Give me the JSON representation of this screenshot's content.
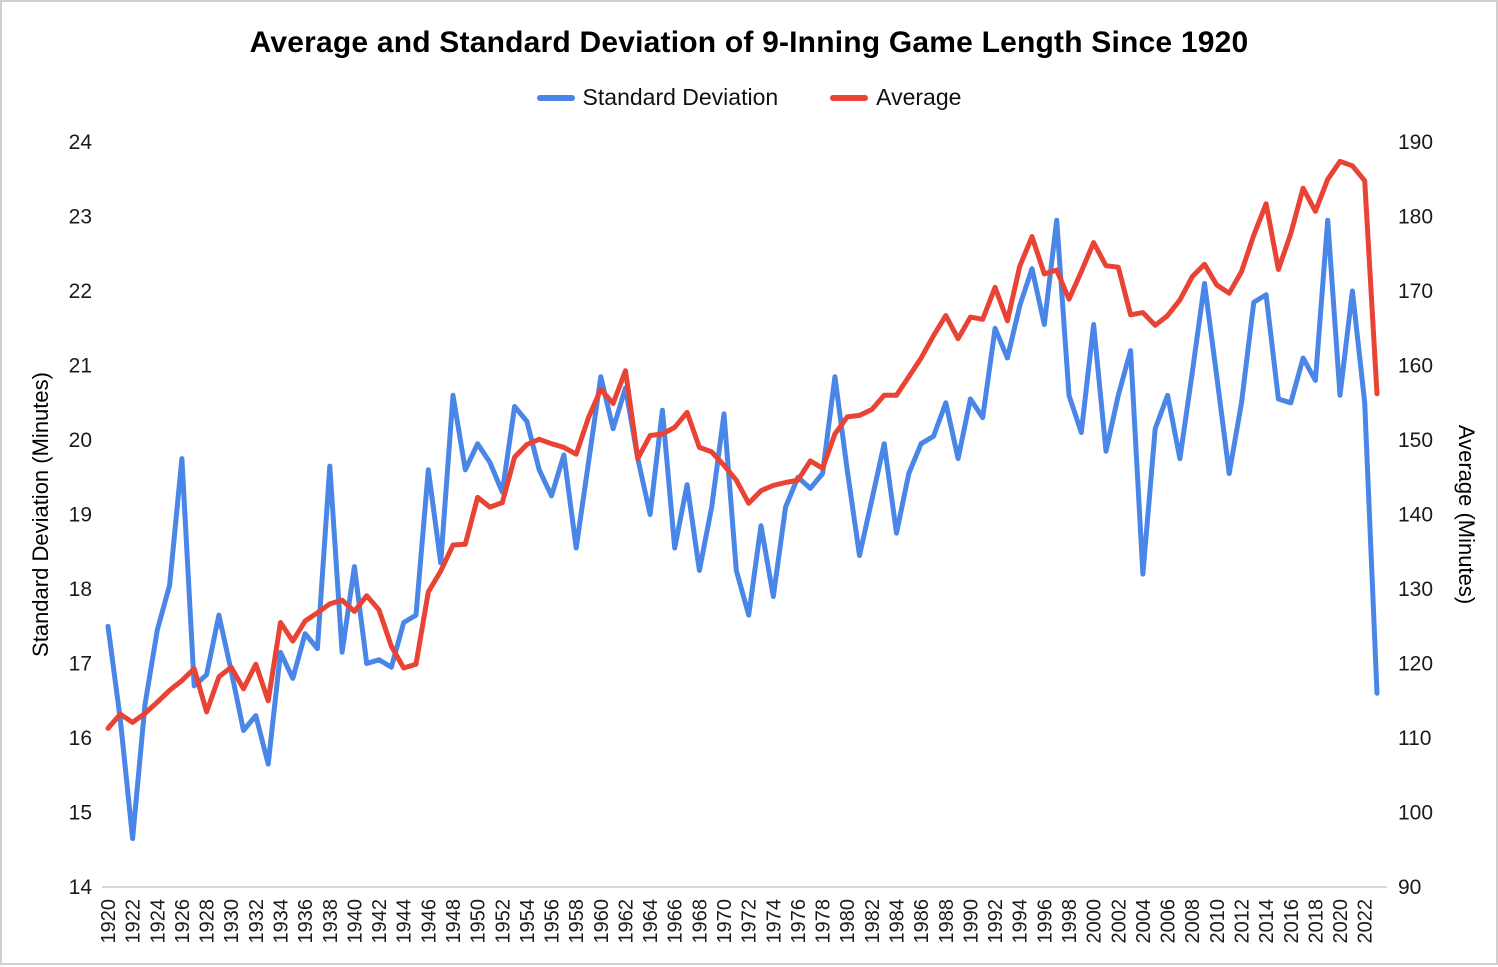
{
  "title": "Average and Standard Deviation of 9-Inning Game Length Since 1920",
  "legend": {
    "items": [
      {
        "label": "Standard Deviation",
        "color": "#4a86e8"
      },
      {
        "label": "Average",
        "color": "#e84335"
      }
    ]
  },
  "colors": {
    "sd_line": "#4a86e8",
    "avg_line": "#e84335",
    "axis_line": "#d9d9d9",
    "tick_text": "#1a1a1a"
  },
  "chart_data": {
    "type": "line",
    "title": "Average and Standard Deviation of 9-Inning Game Length Since 1920",
    "grid": false,
    "legend_position": "top",
    "x": [
      1920,
      1921,
      1922,
      1923,
      1924,
      1925,
      1926,
      1927,
      1928,
      1929,
      1930,
      1931,
      1932,
      1933,
      1934,
      1935,
      1936,
      1937,
      1938,
      1939,
      1940,
      1941,
      1942,
      1943,
      1944,
      1945,
      1946,
      1947,
      1948,
      1949,
      1950,
      1951,
      1952,
      1953,
      1954,
      1955,
      1956,
      1957,
      1958,
      1959,
      1960,
      1961,
      1962,
      1963,
      1964,
      1965,
      1966,
      1967,
      1968,
      1969,
      1970,
      1971,
      1972,
      1973,
      1974,
      1975,
      1976,
      1977,
      1978,
      1979,
      1980,
      1981,
      1982,
      1983,
      1984,
      1985,
      1986,
      1987,
      1988,
      1989,
      1990,
      1991,
      1992,
      1993,
      1994,
      1995,
      1996,
      1997,
      1998,
      1999,
      2000,
      2001,
      2002,
      2003,
      2004,
      2005,
      2006,
      2007,
      2008,
      2009,
      2010,
      2011,
      2012,
      2013,
      2014,
      2015,
      2016,
      2017,
      2018,
      2019,
      2020,
      2021,
      2022,
      2023
    ],
    "series": [
      {
        "name": "Standard Deviation",
        "axis": "left",
        "color": "#4a86e8",
        "values": [
          17.5,
          16.25,
          14.65,
          16.45,
          17.45,
          18.05,
          19.75,
          16.7,
          16.85,
          17.65,
          16.9,
          16.1,
          16.3,
          15.65,
          17.15,
          16.8,
          17.4,
          17.2,
          19.65,
          17.15,
          18.3,
          17.0,
          17.05,
          16.95,
          17.55,
          17.65,
          19.6,
          18.35,
          20.6,
          19.6,
          19.95,
          19.7,
          19.3,
          20.45,
          20.25,
          19.6,
          19.25,
          19.8,
          18.55,
          19.7,
          20.85,
          20.15,
          20.7,
          19.75,
          19.0,
          20.4,
          18.55,
          19.4,
          18.25,
          19.1,
          20.35,
          18.25,
          17.65,
          18.85,
          17.9,
          19.1,
          19.5,
          19.35,
          19.55,
          20.85,
          19.6,
          18.45,
          19.2,
          19.95,
          18.75,
          19.55,
          19.95,
          20.05,
          20.5,
          19.75,
          20.55,
          20.3,
          21.5,
          21.1,
          21.8,
          22.3,
          21.55,
          22.95,
          20.6,
          20.1,
          21.55,
          19.85,
          20.6,
          21.2,
          18.2,
          20.15,
          20.6,
          19.75,
          20.9,
          22.1,
          20.85,
          19.55,
          20.5,
          21.85,
          21.95,
          20.55,
          20.5,
          21.1,
          20.8,
          22.95,
          20.6,
          22.0,
          20.5,
          16.6
        ]
      },
      {
        "name": "Average",
        "axis": "right",
        "color": "#e84335",
        "values": [
          111.3,
          113.2,
          112.1,
          113.3,
          114.8,
          116.4,
          117.7,
          119.3,
          113.5,
          118.2,
          119.5,
          116.6,
          119.9,
          115.0,
          125.5,
          123.0,
          125.7,
          126.8,
          128.0,
          128.5,
          127.0,
          129.1,
          127.2,
          122.3,
          119.4,
          119.9,
          129.6,
          132.4,
          135.9,
          136.0,
          142.3,
          141.0,
          141.6,
          147.7,
          149.4,
          150.1,
          149.5,
          149.0,
          148.1,
          153.0,
          156.8,
          154.9,
          159.3,
          147.5,
          150.6,
          150.8,
          151.7,
          153.7,
          149.0,
          148.4,
          146.6,
          144.6,
          141.5,
          143.2,
          143.9,
          144.3,
          144.6,
          147.2,
          146.2,
          150.8,
          153.1,
          153.3,
          154.1,
          156.0,
          156.0,
          158.5,
          161.0,
          164.0,
          166.7,
          163.6,
          166.5,
          166.2,
          170.5,
          166.0,
          173.3,
          177.3,
          172.3,
          172.8,
          168.9,
          172.6,
          176.5,
          173.4,
          173.2,
          166.8,
          167.1,
          165.4,
          166.7,
          168.8,
          171.9,
          173.6,
          170.8,
          169.7,
          172.6,
          177.5,
          181.7,
          172.9,
          177.7,
          183.8,
          180.7,
          185.0,
          187.4,
          186.8,
          184.8,
          156.2
        ]
      }
    ],
    "left_axis": {
      "label": "Standard Deviation (Minutes)",
      "min": 14,
      "max": 24,
      "tick_step": 1,
      "ticks": [
        14,
        15,
        16,
        17,
        18,
        19,
        20,
        21,
        22,
        23,
        24
      ]
    },
    "right_axis": {
      "label": "Average (Minutes)",
      "min": 90,
      "max": 190,
      "tick_step": 10,
      "ticks": [
        90,
        100,
        110,
        120,
        130,
        140,
        150,
        160,
        170,
        180,
        190
      ]
    },
    "x_axis": {
      "tick_start": 1920,
      "tick_end": 2022,
      "tick_step": 2,
      "label_rotation": -90
    }
  }
}
